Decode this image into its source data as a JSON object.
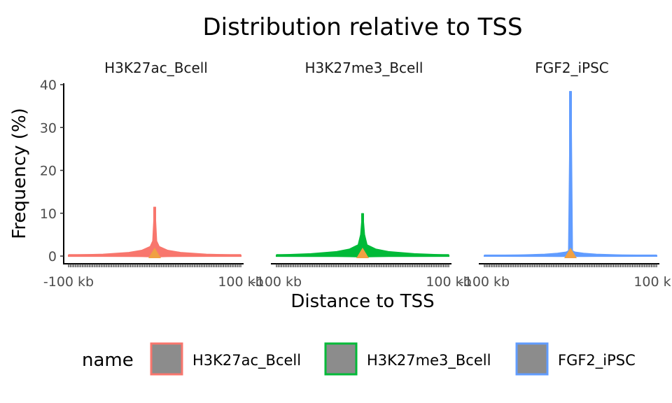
{
  "chart_data": {
    "type": "area",
    "title": "Distribution relative to TSS",
    "xlabel": "Distance to TSS",
    "ylabel": "Frequency (%)",
    "ylim": [
      0,
      40
    ],
    "y_ticks": [
      0,
      10,
      20,
      30,
      40
    ],
    "y_tick_labels": [
      "0",
      "10",
      "20",
      "30",
      "40"
    ],
    "x_tick_labels": [
      "-100 kb",
      "100 kb"
    ],
    "xlim_kb": [
      -100,
      100
    ],
    "facets": [
      {
        "name": "H3K27ac_Bcell",
        "color": "#F8766D",
        "peak": 11.5,
        "baseline": 0.2,
        "near_tss": 3.5,
        "points": [
          {
            "x": -100,
            "y": 0.2
          },
          {
            "x": -60,
            "y": 0.4
          },
          {
            "x": -30,
            "y": 0.8
          },
          {
            "x": -15,
            "y": 1.3
          },
          {
            "x": -5,
            "y": 2.2
          },
          {
            "x": -2,
            "y": 3.5
          },
          {
            "x": 0,
            "y": 11.5
          },
          {
            "x": 2,
            "y": 3.5
          },
          {
            "x": 5,
            "y": 2.2
          },
          {
            "x": 15,
            "y": 1.3
          },
          {
            "x": 30,
            "y": 0.8
          },
          {
            "x": 60,
            "y": 0.4
          },
          {
            "x": 100,
            "y": 0.2
          }
        ]
      },
      {
        "name": "H3K27me3_Bcell",
        "color": "#00BA38",
        "peak": 10.0,
        "baseline": 0.2,
        "near_tss": 5.0,
        "points": [
          {
            "x": -100,
            "y": 0.2
          },
          {
            "x": -60,
            "y": 0.5
          },
          {
            "x": -30,
            "y": 1.0
          },
          {
            "x": -15,
            "y": 1.6
          },
          {
            "x": -5,
            "y": 2.6
          },
          {
            "x": -2,
            "y": 5.0
          },
          {
            "x": 0,
            "y": 10.0
          },
          {
            "x": 2,
            "y": 5.0
          },
          {
            "x": 5,
            "y": 2.6
          },
          {
            "x": 15,
            "y": 1.6
          },
          {
            "x": 30,
            "y": 1.0
          },
          {
            "x": 60,
            "y": 0.5
          },
          {
            "x": 100,
            "y": 0.2
          }
        ]
      },
      {
        "name": "FGF2_iPSC",
        "color": "#619CFF",
        "peak": 38.5,
        "baseline": 0.1,
        "near_tss": 1.2,
        "points": [
          {
            "x": -100,
            "y": 0.1
          },
          {
            "x": -60,
            "y": 0.2
          },
          {
            "x": -30,
            "y": 0.4
          },
          {
            "x": -15,
            "y": 0.6
          },
          {
            "x": -5,
            "y": 0.9
          },
          {
            "x": -2,
            "y": 1.2
          },
          {
            "x": 0,
            "y": 38.5
          },
          {
            "x": 0.5,
            "y": 37.0
          },
          {
            "x": 2,
            "y": 1.2
          },
          {
            "x": 5,
            "y": 0.9
          },
          {
            "x": 15,
            "y": 0.6
          },
          {
            "x": 30,
            "y": 0.4
          },
          {
            "x": 60,
            "y": 0.2
          },
          {
            "x": 100,
            "y": 0.1
          }
        ]
      }
    ],
    "tss_marker": {
      "x": 0,
      "y": 0,
      "color": "#F0A042"
    },
    "legend": {
      "title": "name",
      "position": "bottom",
      "entries": [
        "H3K27ac_Bcell",
        "H3K27me3_Bcell",
        "FGF2_iPSC"
      ],
      "swatch_fill": "#8C8C8C"
    },
    "grid": false
  }
}
